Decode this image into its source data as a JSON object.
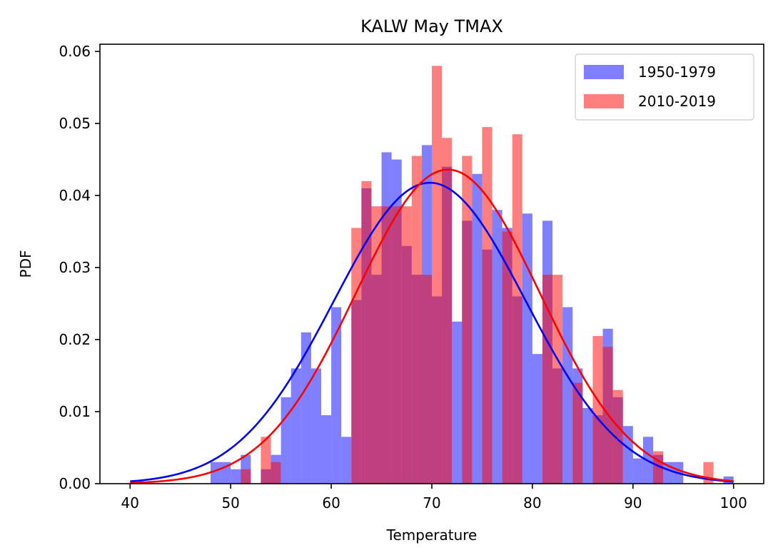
{
  "chart_data": {
    "type": "bar",
    "title": "KALW May TMAX",
    "xlabel": "Temperature",
    "ylabel": "PDF",
    "xlim": [
      37,
      103
    ],
    "ylim": [
      0,
      0.061
    ],
    "xticks": [
      40,
      50,
      60,
      70,
      80,
      90,
      100
    ],
    "yticks": [
      0.0,
      0.01,
      0.02,
      0.03,
      0.04,
      0.05,
      0.06
    ],
    "grid": false,
    "legend_position": "top-right",
    "bins": {
      "start": 48,
      "width": 1,
      "count": 52
    },
    "series": [
      {
        "name": "1950-1979",
        "color": "#0000ff",
        "kind": "histogram",
        "values": [
          0.003,
          0.003,
          0.002,
          0.004,
          0.0,
          0.002,
          0.004,
          0.012,
          0.016,
          0.021,
          0.016,
          0.0095,
          0.0245,
          0.0065,
          0.0255,
          0.041,
          0.029,
          0.046,
          0.045,
          0.033,
          0.029,
          0.047,
          0.026,
          0.044,
          0.0225,
          0.0365,
          0.043,
          0.0325,
          0.038,
          0.0355,
          0.026,
          0.0375,
          0.018,
          0.0365,
          0.016,
          0.0245,
          0.016,
          0.0105,
          0.0095,
          0.0215,
          0.012,
          0.008,
          0.0035,
          0.0065,
          0.004,
          0.003,
          0.003,
          0.0,
          0.0,
          0.0,
          0.0,
          0.001
        ]
      },
      {
        "name": "2010-2019",
        "color": "#ff0000",
        "kind": "histogram",
        "values": [
          0.0,
          0.0,
          0.0,
          0.002,
          0.0,
          0.0065,
          0.003,
          0.0,
          0.0,
          0.0,
          0.0,
          0.0,
          0.0,
          0.0,
          0.0355,
          0.042,
          0.0385,
          0.0385,
          0.0385,
          0.0385,
          0.0455,
          0.029,
          0.058,
          0.048,
          0.0,
          0.0455,
          0.0,
          0.0495,
          0.0,
          0.035,
          0.0485,
          0.0,
          0.0,
          0.029,
          0.029,
          0.0,
          0.014,
          0.0,
          0.0205,
          0.019,
          0.013,
          0.0,
          0.0,
          0.0,
          0.0045,
          0.0,
          0.0,
          0.0,
          0.0,
          0.003,
          0.0,
          0.0
        ]
      }
    ],
    "fits": [
      {
        "name": "1950-1979 normal fit",
        "color": "#0000ff",
        "mean": 69.8,
        "std": 9.55,
        "x_range": [
          40,
          100
        ]
      },
      {
        "name": "2010-2019 normal fit",
        "color": "#ff0000",
        "mean": 71.6,
        "std": 9.15,
        "x_range": [
          40,
          100
        ]
      }
    ]
  }
}
